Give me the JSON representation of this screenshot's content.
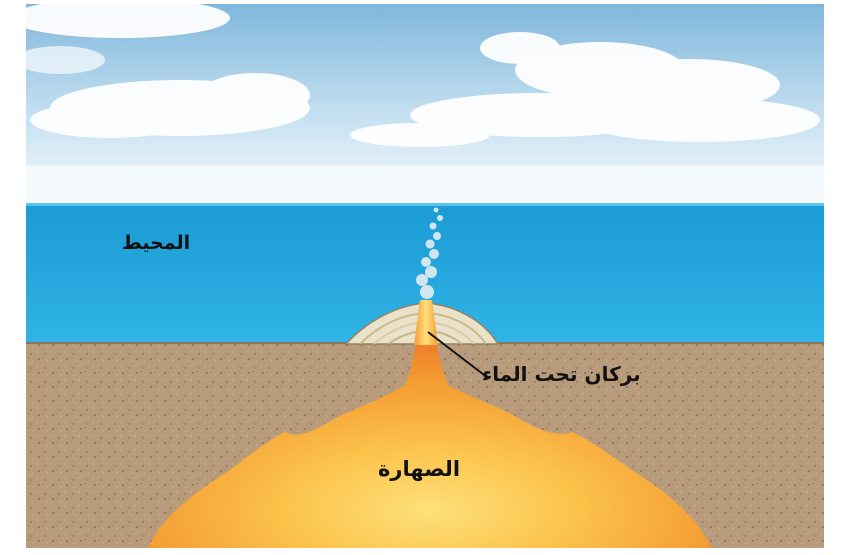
{
  "labels": {
    "ocean": "المحيط",
    "volcano": "بركان تحت الماء",
    "magma": "الصهارة"
  },
  "colors": {
    "sky_top": "#7fb7dc",
    "sky_bottom": "#eef6fb",
    "ocean_top": "#1d9fd6",
    "ocean_bottom": "#2bb0e3",
    "sediment": "#b79b7a",
    "magma_outer": "#f07b2a",
    "magma_inner": "#fbd45a",
    "steam": "#dfe9ef"
  }
}
